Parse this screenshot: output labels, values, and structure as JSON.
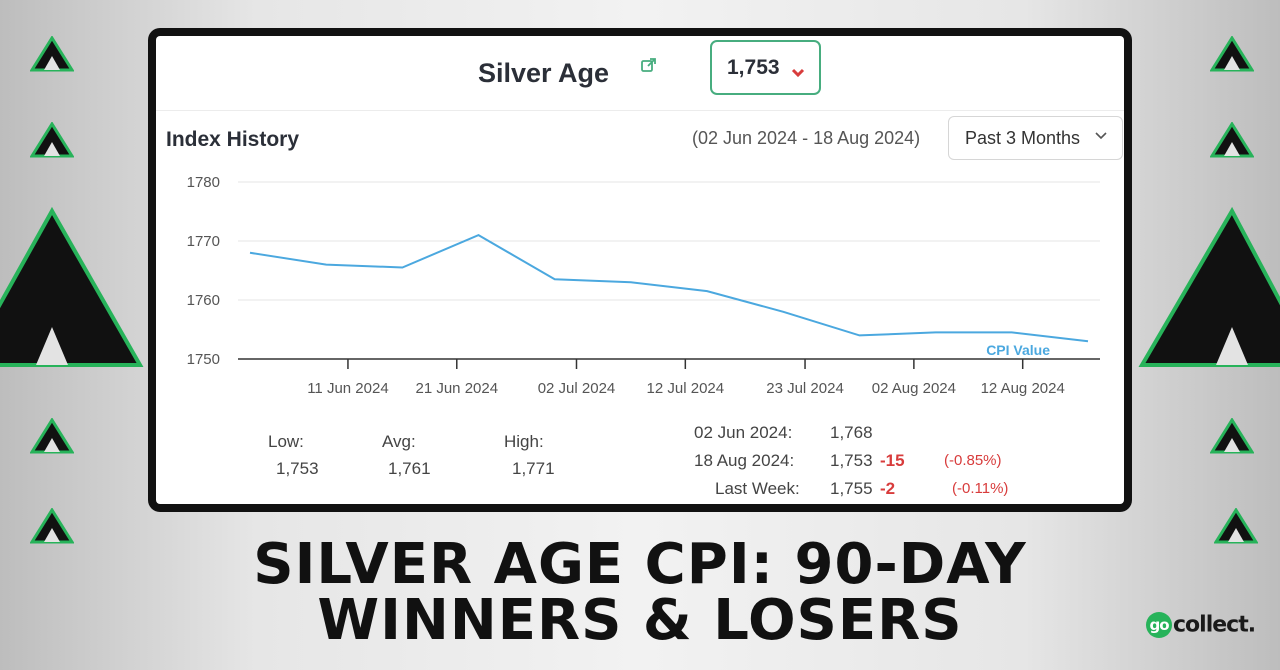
{
  "card": {
    "title": "Silver Age",
    "index_value": "1,753",
    "trend_direction": "down",
    "section_title": "Index History",
    "date_range": "(02 Jun 2024 - 18 Aug 2024)",
    "range_select_value": "Past 3 Months"
  },
  "stats": {
    "low_label": "Low:",
    "low_value": "1,753",
    "avg_label": "Avg:",
    "avg_value": "1,761",
    "high_label": "High:",
    "high_value": "1,771",
    "rows": [
      {
        "label": "02 Jun 2024:",
        "value": "1,768",
        "change": "",
        "pct": ""
      },
      {
        "label": "18 Aug 2024:",
        "value": "1,753",
        "change": "-15",
        "pct": "(-0.85%)"
      },
      {
        "label": "Last Week:",
        "value": "1,755",
        "change": "-2",
        "pct": "(-0.11%)"
      }
    ]
  },
  "headline": {
    "line1": "SILVER AGE CPI: 90-DAY",
    "line2": "WINNERS & LOSERS"
  },
  "brand": {
    "mark": "go",
    "name": "collect."
  },
  "colors": {
    "line": "#4ba8df",
    "accent_green": "#47ad7f",
    "negative": "#d83c3c",
    "decor_green": "#27b35a"
  },
  "icons": [
    "external-link-icon",
    "chevron-down-icon",
    "triangle-marker-icon"
  ],
  "chart_data": {
    "type": "line",
    "x_tick_labels": [
      "11 Jun 2024",
      "21 Jun 2024",
      "02 Jul 2024",
      "12 Jul 2024",
      "23 Jul 2024",
      "02 Aug 2024",
      "12 Aug 2024"
    ],
    "y_tick_labels": [
      "1750",
      "1760",
      "1770",
      "1780"
    ],
    "ylim": [
      1750,
      1780
    ],
    "xlim": [
      "2024-06-02",
      "2024-08-18"
    ],
    "grid": true,
    "series": [
      {
        "name": "CPI Value",
        "x": [
          "2024-06-02",
          "2024-06-09",
          "2024-06-16",
          "2024-06-23",
          "2024-06-30",
          "2024-07-07",
          "2024-07-14",
          "2024-07-21",
          "2024-07-28",
          "2024-08-04",
          "2024-08-11",
          "2024-08-18"
        ],
        "y": [
          1768,
          1766,
          1765.5,
          1771,
          1763.5,
          1763,
          1761.5,
          1758,
          1754,
          1754.5,
          1754.5,
          1753
        ]
      }
    ]
  }
}
